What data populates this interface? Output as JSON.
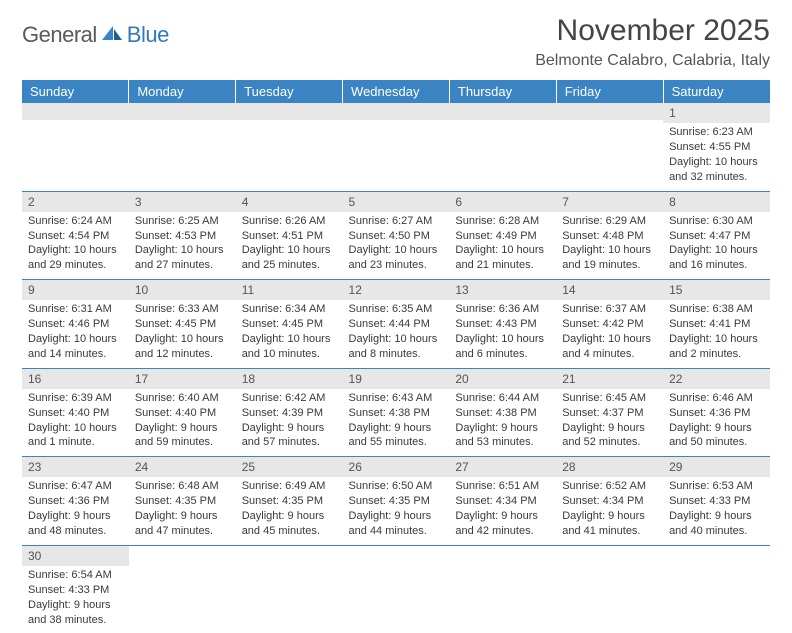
{
  "logo": {
    "text1": "General",
    "text2": "Blue"
  },
  "title": "November 2025",
  "location": "Belmonte Calabro, Calabria, Italy",
  "colors": {
    "header_bg": "#3b84c4",
    "daynum_bg": "#e7e7e7",
    "rule": "#3b84c4",
    "logo_blue": "#2f7ac0",
    "text": "#3a3a3a"
  },
  "font": {
    "title_size": 30,
    "location_size": 16,
    "daylabel_size": 13,
    "cell_size": 11
  },
  "dayNames": [
    "Sunday",
    "Monday",
    "Tuesday",
    "Wednesday",
    "Thursday",
    "Friday",
    "Saturday"
  ],
  "weeks": [
    [
      null,
      null,
      null,
      null,
      null,
      null,
      {
        "n": 1,
        "sunrise": "Sunrise: 6:23 AM",
        "sunset": "Sunset: 4:55 PM",
        "daylight": "Daylight: 10 hours and 32 minutes."
      }
    ],
    [
      {
        "n": 2,
        "sunrise": "Sunrise: 6:24 AM",
        "sunset": "Sunset: 4:54 PM",
        "daylight": "Daylight: 10 hours and 29 minutes."
      },
      {
        "n": 3,
        "sunrise": "Sunrise: 6:25 AM",
        "sunset": "Sunset: 4:53 PM",
        "daylight": "Daylight: 10 hours and 27 minutes."
      },
      {
        "n": 4,
        "sunrise": "Sunrise: 6:26 AM",
        "sunset": "Sunset: 4:51 PM",
        "daylight": "Daylight: 10 hours and 25 minutes."
      },
      {
        "n": 5,
        "sunrise": "Sunrise: 6:27 AM",
        "sunset": "Sunset: 4:50 PM",
        "daylight": "Daylight: 10 hours and 23 minutes."
      },
      {
        "n": 6,
        "sunrise": "Sunrise: 6:28 AM",
        "sunset": "Sunset: 4:49 PM",
        "daylight": "Daylight: 10 hours and 21 minutes."
      },
      {
        "n": 7,
        "sunrise": "Sunrise: 6:29 AM",
        "sunset": "Sunset: 4:48 PM",
        "daylight": "Daylight: 10 hours and 19 minutes."
      },
      {
        "n": 8,
        "sunrise": "Sunrise: 6:30 AM",
        "sunset": "Sunset: 4:47 PM",
        "daylight": "Daylight: 10 hours and 16 minutes."
      }
    ],
    [
      {
        "n": 9,
        "sunrise": "Sunrise: 6:31 AM",
        "sunset": "Sunset: 4:46 PM",
        "daylight": "Daylight: 10 hours and 14 minutes."
      },
      {
        "n": 10,
        "sunrise": "Sunrise: 6:33 AM",
        "sunset": "Sunset: 4:45 PM",
        "daylight": "Daylight: 10 hours and 12 minutes."
      },
      {
        "n": 11,
        "sunrise": "Sunrise: 6:34 AM",
        "sunset": "Sunset: 4:45 PM",
        "daylight": "Daylight: 10 hours and 10 minutes."
      },
      {
        "n": 12,
        "sunrise": "Sunrise: 6:35 AM",
        "sunset": "Sunset: 4:44 PM",
        "daylight": "Daylight: 10 hours and 8 minutes."
      },
      {
        "n": 13,
        "sunrise": "Sunrise: 6:36 AM",
        "sunset": "Sunset: 4:43 PM",
        "daylight": "Daylight: 10 hours and 6 minutes."
      },
      {
        "n": 14,
        "sunrise": "Sunrise: 6:37 AM",
        "sunset": "Sunset: 4:42 PM",
        "daylight": "Daylight: 10 hours and 4 minutes."
      },
      {
        "n": 15,
        "sunrise": "Sunrise: 6:38 AM",
        "sunset": "Sunset: 4:41 PM",
        "daylight": "Daylight: 10 hours and 2 minutes."
      }
    ],
    [
      {
        "n": 16,
        "sunrise": "Sunrise: 6:39 AM",
        "sunset": "Sunset: 4:40 PM",
        "daylight": "Daylight: 10 hours and 1 minute."
      },
      {
        "n": 17,
        "sunrise": "Sunrise: 6:40 AM",
        "sunset": "Sunset: 4:40 PM",
        "daylight": "Daylight: 9 hours and 59 minutes."
      },
      {
        "n": 18,
        "sunrise": "Sunrise: 6:42 AM",
        "sunset": "Sunset: 4:39 PM",
        "daylight": "Daylight: 9 hours and 57 minutes."
      },
      {
        "n": 19,
        "sunrise": "Sunrise: 6:43 AM",
        "sunset": "Sunset: 4:38 PM",
        "daylight": "Daylight: 9 hours and 55 minutes."
      },
      {
        "n": 20,
        "sunrise": "Sunrise: 6:44 AM",
        "sunset": "Sunset: 4:38 PM",
        "daylight": "Daylight: 9 hours and 53 minutes."
      },
      {
        "n": 21,
        "sunrise": "Sunrise: 6:45 AM",
        "sunset": "Sunset: 4:37 PM",
        "daylight": "Daylight: 9 hours and 52 minutes."
      },
      {
        "n": 22,
        "sunrise": "Sunrise: 6:46 AM",
        "sunset": "Sunset: 4:36 PM",
        "daylight": "Daylight: 9 hours and 50 minutes."
      }
    ],
    [
      {
        "n": 23,
        "sunrise": "Sunrise: 6:47 AM",
        "sunset": "Sunset: 4:36 PM",
        "daylight": "Daylight: 9 hours and 48 minutes."
      },
      {
        "n": 24,
        "sunrise": "Sunrise: 6:48 AM",
        "sunset": "Sunset: 4:35 PM",
        "daylight": "Daylight: 9 hours and 47 minutes."
      },
      {
        "n": 25,
        "sunrise": "Sunrise: 6:49 AM",
        "sunset": "Sunset: 4:35 PM",
        "daylight": "Daylight: 9 hours and 45 minutes."
      },
      {
        "n": 26,
        "sunrise": "Sunrise: 6:50 AM",
        "sunset": "Sunset: 4:35 PM",
        "daylight": "Daylight: 9 hours and 44 minutes."
      },
      {
        "n": 27,
        "sunrise": "Sunrise: 6:51 AM",
        "sunset": "Sunset: 4:34 PM",
        "daylight": "Daylight: 9 hours and 42 minutes."
      },
      {
        "n": 28,
        "sunrise": "Sunrise: 6:52 AM",
        "sunset": "Sunset: 4:34 PM",
        "daylight": "Daylight: 9 hours and 41 minutes."
      },
      {
        "n": 29,
        "sunrise": "Sunrise: 6:53 AM",
        "sunset": "Sunset: 4:33 PM",
        "daylight": "Daylight: 9 hours and 40 minutes."
      }
    ],
    [
      {
        "n": 30,
        "sunrise": "Sunrise: 6:54 AM",
        "sunset": "Sunset: 4:33 PM",
        "daylight": "Daylight: 9 hours and 38 minutes."
      },
      null,
      null,
      null,
      null,
      null,
      null
    ]
  ]
}
